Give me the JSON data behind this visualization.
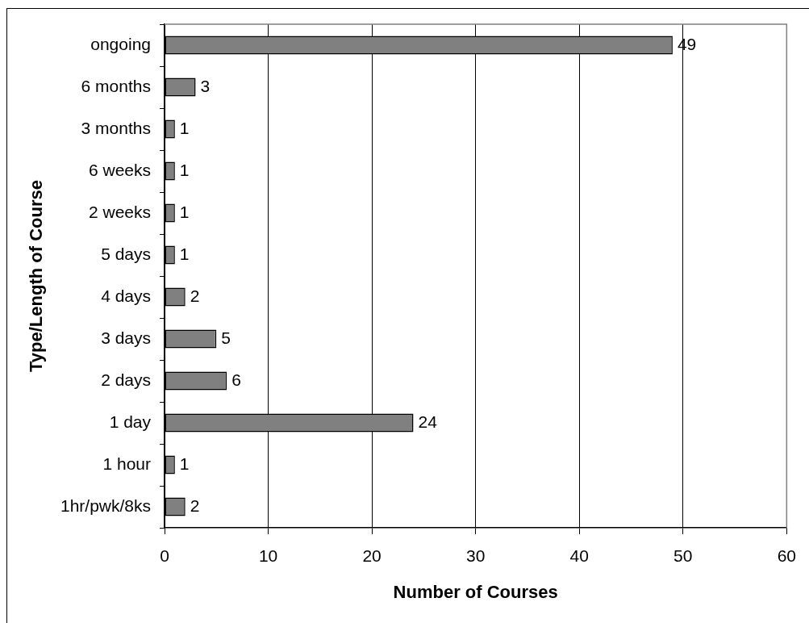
{
  "chart_data": {
    "type": "bar",
    "orientation": "horizontal",
    "xlabel": "Number of Courses",
    "ylabel": "Type/Length of Course",
    "categories": [
      "ongoing",
      "6 months",
      "3 months",
      "6 weeks",
      "2 weeks",
      "5 days",
      "4 days",
      "3 days",
      "2 days",
      "1 day",
      "1 hour",
      "1hr/pwk/8ks"
    ],
    "values": [
      49,
      3,
      1,
      1,
      1,
      1,
      2,
      5,
      6,
      24,
      1,
      2
    ],
    "color": "#808080",
    "xlim": [
      0,
      60
    ],
    "xticks": [
      0,
      10,
      20,
      30,
      40,
      50,
      60
    ],
    "grid": "x",
    "data_labels": true
  }
}
